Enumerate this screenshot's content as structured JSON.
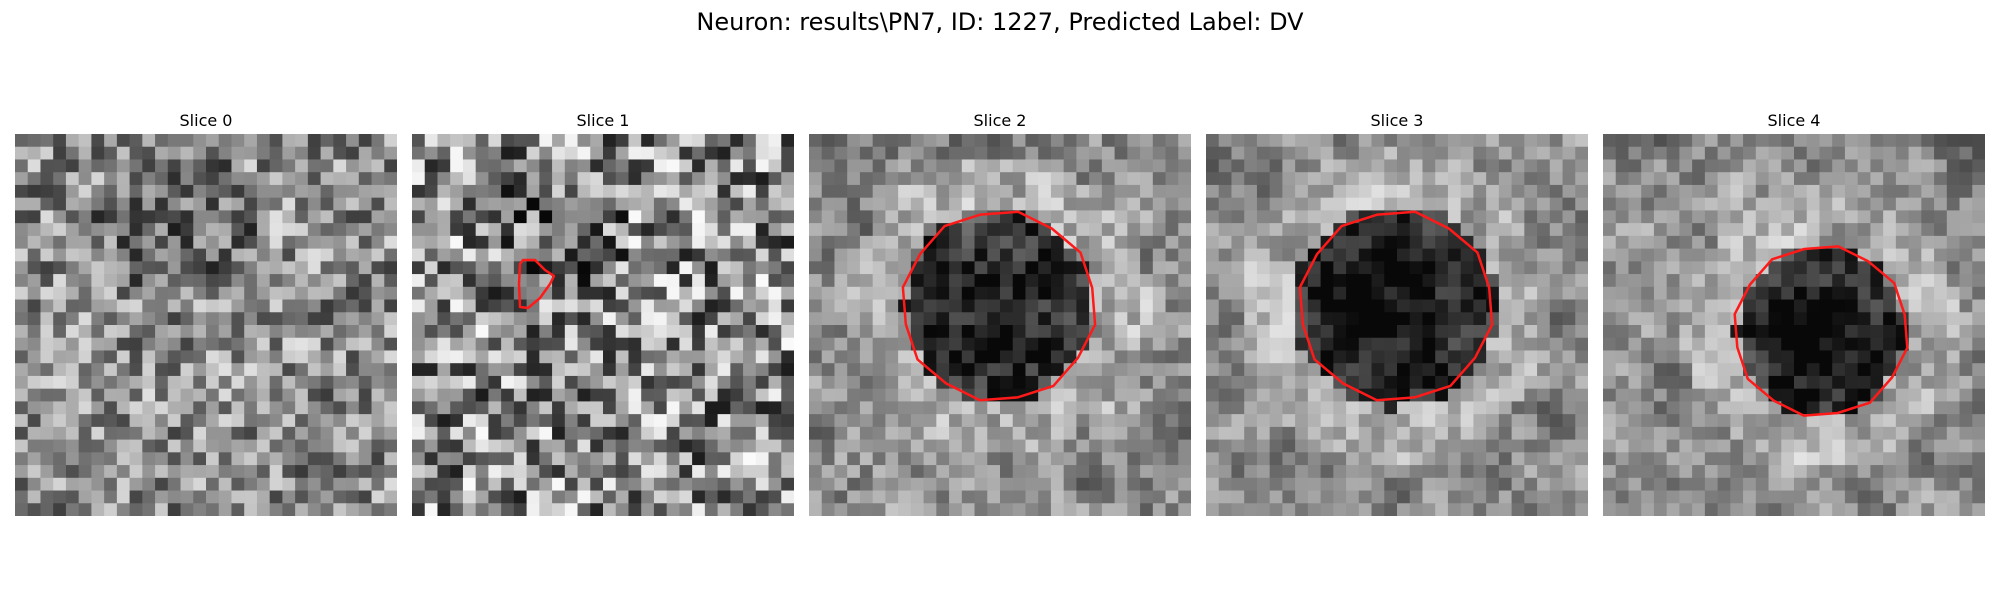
{
  "figure": {
    "title": "Neuron: results\\PN7, ID: 1227, Predicted Label: DV"
  },
  "image_grid": {
    "rows": 30,
    "cols": 30
  },
  "colors": {
    "background": "#ffffff",
    "roi_contour": "#ff1a1a",
    "colormap": "gray"
  },
  "panels": [
    {
      "title": "Slice 0",
      "seed": 11,
      "contrast": 0.34,
      "blur": 0.18,
      "roi": null
    },
    {
      "title": "Slice 1",
      "seed": 29,
      "contrast": 0.42,
      "blur": 0.05,
      "roi": "small"
    },
    {
      "title": "Slice 2",
      "seed": 53,
      "contrast": 0.3,
      "blur": 0.45,
      "roi": "large"
    },
    {
      "title": "Slice 3",
      "seed": 71,
      "contrast": 0.28,
      "blur": 0.5,
      "roi": "large"
    },
    {
      "title": "Slice 4",
      "seed": 97,
      "contrast": 0.3,
      "blur": 0.55,
      "roi": "medium"
    }
  ]
}
